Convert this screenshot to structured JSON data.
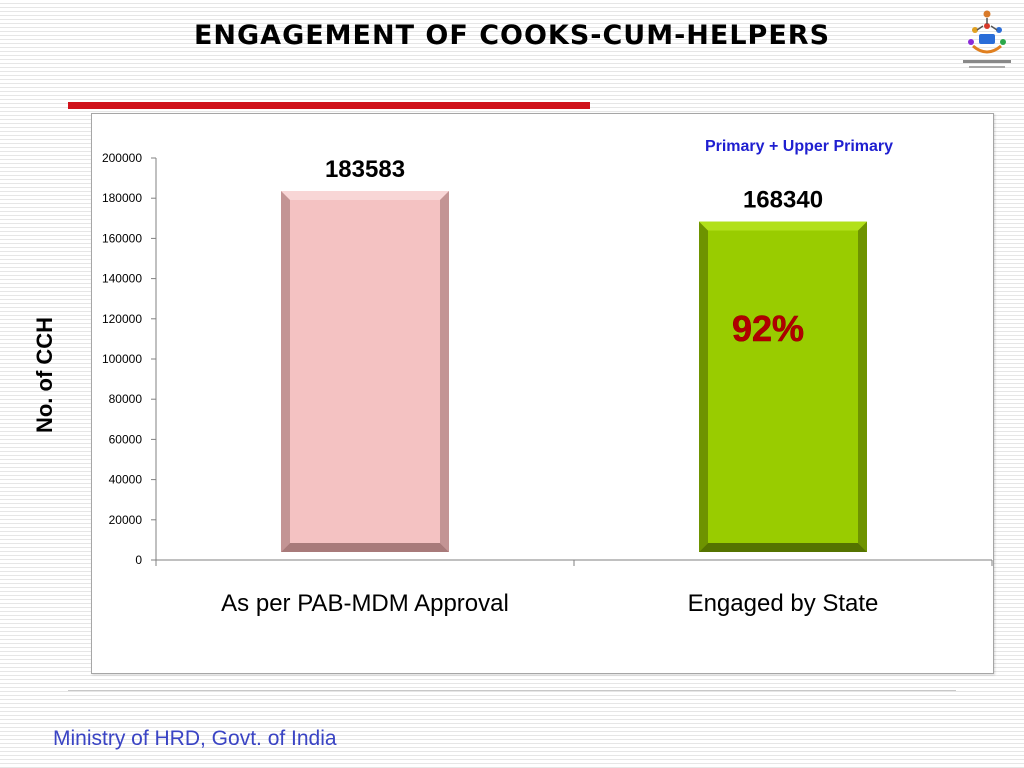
{
  "slide": {
    "title": "ENGAGEMENT  OF  COOKS-CUM-HELPERS",
    "footer": "Ministry of HRD, Govt. of India"
  },
  "chart_data": {
    "type": "bar",
    "title": "Primary + Upper Primary",
    "xlabel": "",
    "ylabel": "No. of CCH",
    "categories": [
      "As per PAB-MDM Approval",
      "Engaged by State"
    ],
    "values": [
      183583,
      168340
    ],
    "data_labels": [
      "183583",
      "168340"
    ],
    "annotation": "92%",
    "ylim": [
      0,
      200000
    ],
    "yticks": [
      "0",
      "20000",
      "40000",
      "60000",
      "80000",
      "100000",
      "120000",
      "140000",
      "160000",
      "180000",
      "200000"
    ],
    "grid": false,
    "legend": "none",
    "colors": [
      "#f4c2c2",
      "#99cc00"
    ]
  }
}
